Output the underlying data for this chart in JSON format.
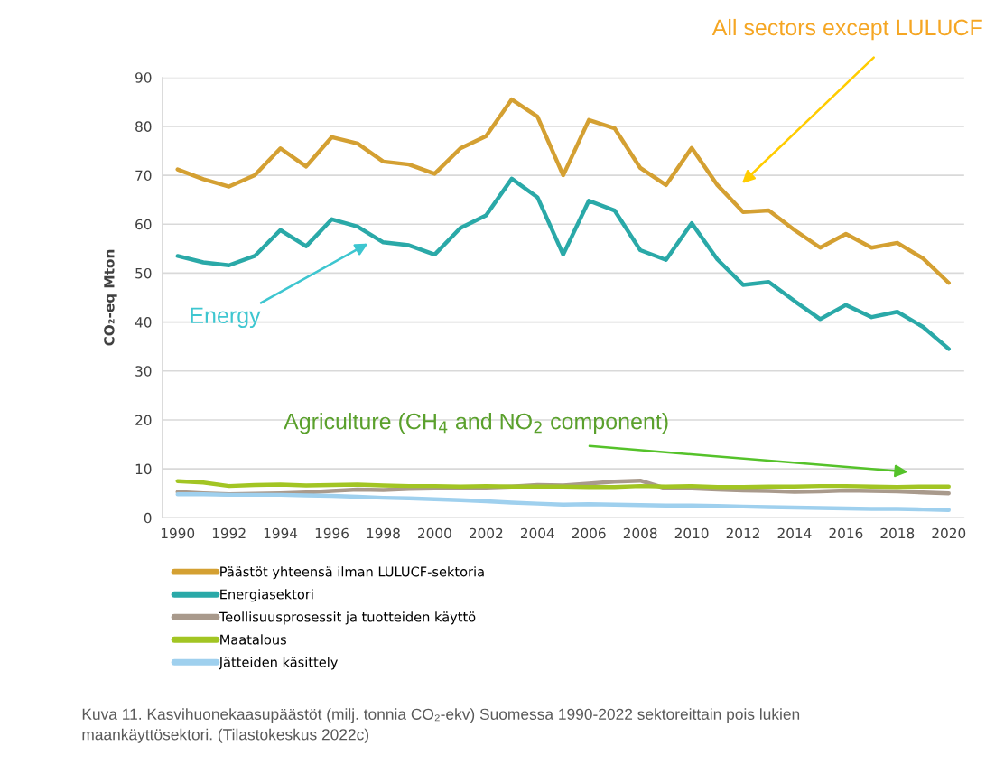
{
  "chart_data": {
    "type": "line",
    "x": [
      1990,
      1991,
      1992,
      1993,
      1994,
      1995,
      1996,
      1997,
      1998,
      1999,
      2000,
      2001,
      2002,
      2003,
      2004,
      2005,
      2006,
      2007,
      2008,
      2009,
      2010,
      2011,
      2012,
      2013,
      2014,
      2015,
      2016,
      2017,
      2018,
      2019,
      2020
    ],
    "series": [
      {
        "name": "Päästöt yhteensä ilman LULUCF-sektoria",
        "color": "#d4a032",
        "values": [
          71.2,
          69.2,
          67.7,
          70.0,
          75.5,
          71.8,
          77.8,
          76.5,
          72.8,
          72.2,
          70.3,
          75.5,
          78.0,
          85.5,
          82.0,
          70.0,
          81.3,
          79.6,
          71.5,
          68.0,
          75.6,
          68.0,
          62.5,
          62.8,
          58.8,
          55.2,
          58.0,
          55.2,
          56.2,
          53.0,
          48.0
        ]
      },
      {
        "name": "Energiasektori",
        "color": "#2aa9a8",
        "values": [
          53.5,
          52.2,
          51.6,
          53.5,
          58.8,
          55.5,
          61.0,
          59.5,
          56.3,
          55.7,
          53.8,
          59.2,
          61.8,
          69.3,
          65.5,
          53.8,
          64.8,
          62.8,
          54.7,
          52.7,
          60.2,
          52.8,
          47.6,
          48.2,
          44.3,
          40.6,
          43.5,
          41.0,
          42.1,
          39.0,
          34.5
        ]
      },
      {
        "name": "Teollisuusprosessit ja tuotteiden käyttö",
        "color": "#a99a8c",
        "values": [
          5.3,
          5.0,
          4.8,
          4.9,
          5.0,
          5.2,
          5.5,
          5.8,
          5.7,
          5.9,
          6.0,
          6.1,
          6.2,
          6.4,
          6.7,
          6.6,
          7.0,
          7.4,
          7.6,
          6.0,
          6.0,
          5.8,
          5.6,
          5.5,
          5.3,
          5.4,
          5.6,
          5.5,
          5.4,
          5.2,
          5.0
        ]
      },
      {
        "name": "Maatalous",
        "color": "#a2c523",
        "values": [
          7.5,
          7.2,
          6.5,
          6.7,
          6.8,
          6.6,
          6.7,
          6.8,
          6.6,
          6.5,
          6.5,
          6.4,
          6.5,
          6.4,
          6.4,
          6.4,
          6.3,
          6.3,
          6.5,
          6.4,
          6.5,
          6.3,
          6.3,
          6.4,
          6.4,
          6.5,
          6.5,
          6.4,
          6.3,
          6.4,
          6.4
        ]
      },
      {
        "name": "Jätteiden käsittely",
        "color": "#9fd0ee",
        "values": [
          4.8,
          4.8,
          4.7,
          4.7,
          4.7,
          4.6,
          4.5,
          4.3,
          4.1,
          4.0,
          3.8,
          3.6,
          3.4,
          3.1,
          2.9,
          2.7,
          2.8,
          2.7,
          2.6,
          2.5,
          2.5,
          2.4,
          2.3,
          2.2,
          2.1,
          2.0,
          1.9,
          1.8,
          1.8,
          1.7,
          1.6
        ]
      }
    ],
    "ylabel": "CO₂-eq Mton",
    "xlim": [
      1989.4,
      2020.6
    ],
    "xticks": [
      1990,
      1992,
      1994,
      1996,
      1998,
      2000,
      2002,
      2004,
      2006,
      2008,
      2010,
      2012,
      2014,
      2016,
      2018,
      2020
    ],
    "ylim": [
      0,
      90
    ],
    "yticks": [
      0,
      10,
      20,
      30,
      40,
      50,
      60,
      70,
      80,
      90
    ],
    "grid": "y",
    "legend": "bottom left",
    "marker": "none",
    "line_style": "solid",
    "annotations": [
      "All sectors except LULUCF",
      "Energy",
      "Agriculture (CH$_{4}$ and NO$_{2}$ component)",
      "Kuva 11. Kasvihuonekaasupäästöt (milj. tonnia CO₂-ekv) Suomessa 1990-2022 sektoreittain pois lukien maankäyttösektori. (Tilastokeskus 2022c)"
    ]
  }
}
